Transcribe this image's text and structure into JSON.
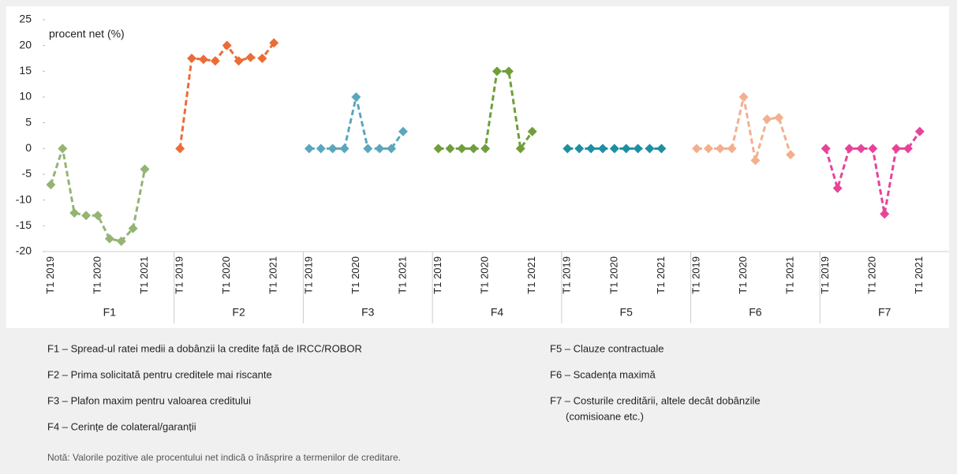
{
  "chart_data": {
    "type": "line",
    "y_label": "procent net (%)",
    "categories": [
      "T1 2019",
      null,
      null,
      null,
      "T1 2020",
      null,
      null,
      null,
      "T1 2021"
    ],
    "ylim": [
      -20,
      25
    ],
    "yticks": [
      -20,
      -15,
      -10,
      -5,
      0,
      5,
      10,
      15,
      20,
      25
    ],
    "grid": false,
    "series": [
      {
        "name": "F1",
        "color": "#94b474",
        "legend": [
          "F1 – Spread-ul ratei medii a dobânzii la credite față de IRCC/ROBOR"
        ],
        "values": [
          -7,
          0,
          -12.5,
          -13,
          -13,
          -17.5,
          -18,
          -15.5,
          -4
        ]
      },
      {
        "name": "F2",
        "color": "#ec6c36",
        "legend": [
          "F2 – Prima solicitată pentru creditele mai riscante"
        ],
        "values": [
          0,
          17.5,
          17.3,
          17,
          20,
          17,
          17.7,
          17.5,
          20.5
        ]
      },
      {
        "name": "F3",
        "color": "#5aa7bd",
        "legend": [
          "F3 – Plafon maxim pentru valoarea creditului"
        ],
        "values": [
          0,
          0,
          0,
          0,
          10,
          0,
          0,
          0,
          3.3
        ]
      },
      {
        "name": "F4",
        "color": "#6f9e3b",
        "legend": [
          "F4 – Cerințe de colateral/garanții"
        ],
        "values": [
          0,
          0,
          0,
          0,
          0,
          15,
          15,
          0,
          3.3
        ]
      },
      {
        "name": "F5",
        "color": "#1d8fa2",
        "legend": [
          "F5 – Clauze contractuale"
        ],
        "values": [
          0,
          0,
          0,
          0,
          0,
          0,
          0,
          0,
          0
        ]
      },
      {
        "name": "F6",
        "color": "#f2b08e",
        "legend": [
          "F6 – Scadența maximă"
        ],
        "values": [
          0,
          0,
          0,
          0,
          10,
          -2.3,
          5.7,
          6,
          -1.2
        ]
      },
      {
        "name": "F7",
        "color": "#e8439a",
        "legend": [
          "F7 – Costurile creditării, altele decât dobânzile",
          "(comisioane etc.)"
        ],
        "values": [
          0,
          -7.7,
          0,
          0,
          0,
          -12.7,
          0,
          0,
          3.3
        ]
      }
    ],
    "note": "Notă: Valorile pozitive ale procentului net indică o înăsprire a termenilor de creditare."
  }
}
